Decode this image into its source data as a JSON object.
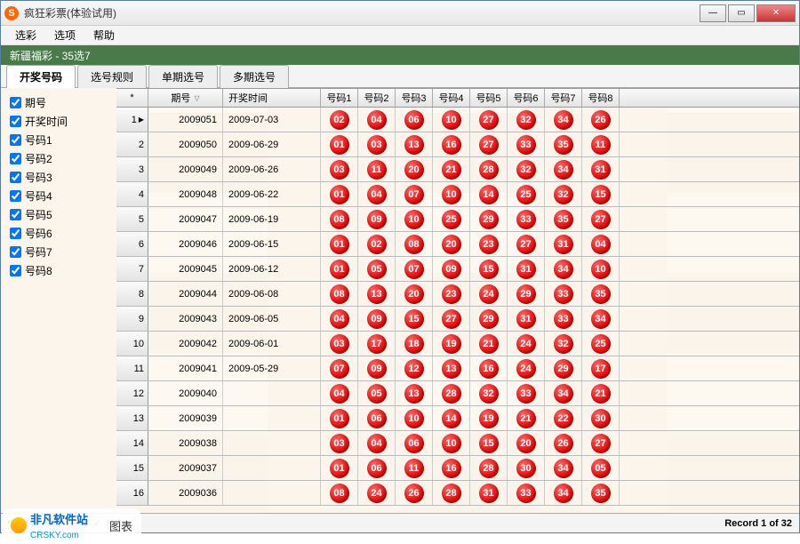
{
  "window": {
    "title": "疯狂彩票(体验试用)",
    "icon_letter": "S"
  },
  "menu": {
    "items": [
      "选彩",
      "选项",
      "帮助"
    ]
  },
  "greenbar": "新疆福彩 - 35选7",
  "tabs": {
    "items": [
      "开奖号码",
      "选号规则",
      "单期选号",
      "多期选号"
    ],
    "active": 0
  },
  "side_checks": [
    {
      "label": "期号",
      "checked": true
    },
    {
      "label": "开奖时间",
      "checked": true
    },
    {
      "label": "号码1",
      "checked": true
    },
    {
      "label": "号码2",
      "checked": true
    },
    {
      "label": "号码3",
      "checked": true
    },
    {
      "label": "号码4",
      "checked": true
    },
    {
      "label": "号码5",
      "checked": true
    },
    {
      "label": "号码6",
      "checked": true
    },
    {
      "label": "号码7",
      "checked": true
    },
    {
      "label": "号码8",
      "checked": true
    }
  ],
  "grid": {
    "headers": {
      "star": "*",
      "period": "期号",
      "date": "开奖时间",
      "nums": [
        "号码1",
        "号码2",
        "号码3",
        "号码4",
        "号码5",
        "号码6",
        "号码7",
        "号码8"
      ]
    },
    "rows": [
      {
        "n": 1,
        "period": "2009051",
        "date": "2009-07-03",
        "balls": [
          "02",
          "04",
          "06",
          "10",
          "27",
          "32",
          "34",
          "26"
        ]
      },
      {
        "n": 2,
        "period": "2009050",
        "date": "2009-06-29",
        "balls": [
          "01",
          "03",
          "13",
          "16",
          "27",
          "33",
          "35",
          "11"
        ]
      },
      {
        "n": 3,
        "period": "2009049",
        "date": "2009-06-26",
        "balls": [
          "03",
          "11",
          "20",
          "21",
          "28",
          "32",
          "34",
          "31"
        ]
      },
      {
        "n": 4,
        "period": "2009048",
        "date": "2009-06-22",
        "balls": [
          "01",
          "04",
          "07",
          "10",
          "14",
          "25",
          "32",
          "15"
        ]
      },
      {
        "n": 5,
        "period": "2009047",
        "date": "2009-06-19",
        "balls": [
          "08",
          "09",
          "10",
          "25",
          "29",
          "33",
          "35",
          "27"
        ]
      },
      {
        "n": 6,
        "period": "2009046",
        "date": "2009-06-15",
        "balls": [
          "01",
          "02",
          "08",
          "20",
          "23",
          "27",
          "31",
          "04"
        ]
      },
      {
        "n": 7,
        "period": "2009045",
        "date": "2009-06-12",
        "balls": [
          "01",
          "05",
          "07",
          "09",
          "15",
          "31",
          "34",
          "10"
        ]
      },
      {
        "n": 8,
        "period": "2009044",
        "date": "2009-06-08",
        "balls": [
          "08",
          "13",
          "20",
          "23",
          "24",
          "29",
          "33",
          "35"
        ]
      },
      {
        "n": 9,
        "period": "2009043",
        "date": "2009-06-05",
        "balls": [
          "04",
          "09",
          "15",
          "27",
          "29",
          "31",
          "33",
          "34"
        ]
      },
      {
        "n": 10,
        "period": "2009042",
        "date": "2009-06-01",
        "balls": [
          "03",
          "17",
          "18",
          "19",
          "21",
          "24",
          "32",
          "25"
        ]
      },
      {
        "n": 11,
        "period": "2009041",
        "date": "2009-05-29",
        "balls": [
          "07",
          "09",
          "12",
          "13",
          "16",
          "24",
          "29",
          "17"
        ]
      },
      {
        "n": 12,
        "period": "2009040",
        "date": "",
        "balls": [
          "04",
          "05",
          "13",
          "28",
          "32",
          "33",
          "34",
          "21"
        ]
      },
      {
        "n": 13,
        "period": "2009039",
        "date": "",
        "balls": [
          "01",
          "06",
          "10",
          "14",
          "19",
          "21",
          "22",
          "30"
        ]
      },
      {
        "n": 14,
        "period": "2009038",
        "date": "",
        "balls": [
          "03",
          "04",
          "06",
          "10",
          "15",
          "20",
          "26",
          "27"
        ]
      },
      {
        "n": 15,
        "period": "2009037",
        "date": "",
        "balls": [
          "01",
          "06",
          "11",
          "16",
          "28",
          "30",
          "34",
          "05"
        ]
      },
      {
        "n": 16,
        "period": "2009036",
        "date": "",
        "balls": [
          "08",
          "24",
          "26",
          "28",
          "31",
          "33",
          "34",
          "35"
        ]
      }
    ]
  },
  "status": {
    "record_text": "Record 1 of 32",
    "bottom_text": "图表"
  },
  "watermark": {
    "main": "非凡软件站",
    "sub": "CRSKY.com"
  },
  "colors": {
    "ball_bg": "#dd0000",
    "ball_text": "#ffffff",
    "greenbar": "#4a7a4a"
  }
}
